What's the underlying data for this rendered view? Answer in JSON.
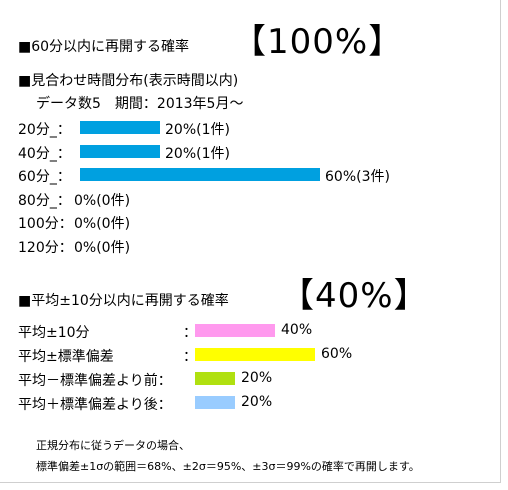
{
  "header": {
    "title1": "■60分以内に再開する確率",
    "big1": "【100%】"
  },
  "dist": {
    "title": "■見合わせ時間分布(表示時間以内)",
    "meta": "データ数5　期間：2013年5月～",
    "color": "#00a0e0"
  },
  "section2": {
    "title": "■平均±10分以内に再開する確率",
    "big": "【40%】"
  },
  "chart_data": [
    {
      "type": "bar",
      "orientation": "horizontal",
      "categories": [
        "20分_：",
        "40分_：",
        "60分_：",
        "80分_：",
        "100分：",
        "120分："
      ],
      "values": [
        20,
        20,
        60,
        0,
        0,
        0
      ],
      "labels": [
        "20%(1件)",
        "20%(1件)",
        "60%(3件)",
        "0%(0件)",
        "0%(0件)",
        "0%(0件)"
      ],
      "xlim": [
        0,
        100
      ]
    },
    {
      "type": "bar",
      "orientation": "horizontal",
      "categories": [
        "平均±10分",
        "平均±標準偏差",
        "平均－標準偏差より前：",
        "平均＋標準偏差より後："
      ],
      "values": [
        40,
        60,
        20,
        20
      ],
      "labels": [
        "40%",
        "60%",
        "20%",
        "20%"
      ],
      "colors": [
        "#ff99ee",
        "#ffff00",
        "#b0e010",
        "#99ccff"
      ],
      "xlim": [
        0,
        100
      ]
    }
  ],
  "colons": [
    "：",
    "："
  ],
  "footer": {
    "line1": "正規分布に従うデータの場合、",
    "line2": "標準偏差±1σの範囲＝68%、±2σ＝95%、±3σ＝99%の確率で再開します。"
  }
}
